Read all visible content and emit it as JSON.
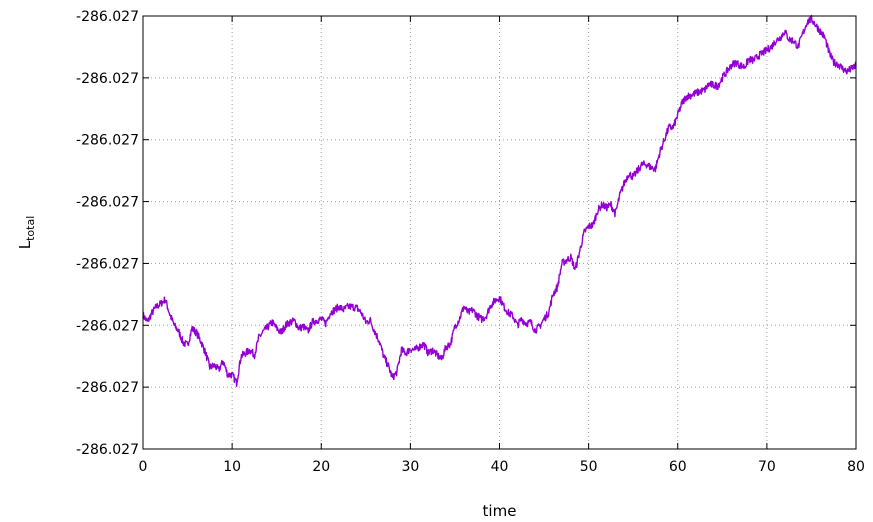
{
  "chart_data": {
    "type": "line",
    "title": "",
    "xlabel": "time",
    "ylabel": {
      "main": "L",
      "subscript": "total"
    },
    "xlim": [
      0,
      80
    ],
    "x_ticks": [
      {
        "value": 0,
        "label": "0"
      },
      {
        "value": 10,
        "label": "10"
      },
      {
        "value": 20,
        "label": "20"
      },
      {
        "value": 30,
        "label": "30"
      },
      {
        "value": 40,
        "label": "40"
      },
      {
        "value": 50,
        "label": "50"
      },
      {
        "value": 60,
        "label": "60"
      },
      {
        "value": 70,
        "label": "70"
      },
      {
        "value": 80,
        "label": "80"
      }
    ],
    "ylim": [
      0,
      7
    ],
    "y_ticks": [
      {
        "value": 0,
        "label": "-286.027"
      },
      {
        "value": 1,
        "label": "-286.027"
      },
      {
        "value": 2,
        "label": "-286.027"
      },
      {
        "value": 3,
        "label": "-286.027"
      },
      {
        "value": 4,
        "label": "-286.027"
      },
      {
        "value": 5,
        "label": "-286.027"
      },
      {
        "value": 6,
        "label": "-286.027"
      },
      {
        "value": 7,
        "label": "-286.027"
      }
    ],
    "grid": true,
    "legend": "none",
    "series": [
      {
        "color": "#9400d3",
        "x": [
          0,
          0.5,
          1,
          1.5,
          2,
          2.5,
          3,
          3.5,
          4,
          4.5,
          5,
          5.5,
          6,
          6.5,
          7,
          7.5,
          8,
          8.5,
          9,
          9.5,
          10,
          10.5,
          11,
          11.5,
          12,
          12.5,
          13,
          13.5,
          14,
          14.5,
          15,
          15.5,
          16,
          16.5,
          17,
          17.5,
          18,
          18.5,
          19,
          19.5,
          20,
          20.5,
          21,
          21.5,
          22,
          22.5,
          23,
          23.5,
          24,
          24.5,
          25,
          25.5,
          26,
          26.5,
          27,
          27.5,
          28,
          28.5,
          29,
          29.5,
          30,
          30.5,
          31,
          31.5,
          32,
          32.5,
          33,
          33.5,
          34,
          34.5,
          35,
          35.5,
          36,
          36.5,
          37,
          37.5,
          38,
          38.5,
          39,
          39.5,
          40,
          40.5,
          41,
          41.5,
          42,
          42.5,
          43,
          43.5,
          44,
          44.5,
          45,
          45.5,
          46,
          46.5,
          47,
          47.5,
          48,
          48.5,
          49,
          49.5,
          50,
          50.5,
          51,
          51.5,
          52,
          52.5,
          53,
          53.5,
          54,
          54.5,
          55,
          55.5,
          56,
          56.5,
          57,
          57.5,
          58,
          58.5,
          59,
          59.5,
          60,
          60.5,
          61,
          61.5,
          62,
          62.5,
          63,
          63.5,
          64,
          64.5,
          65,
          65.5,
          66,
          66.5,
          67,
          67.5,
          68,
          68.5,
          69,
          69.5,
          70,
          70.5,
          71,
          71.5,
          72,
          72.5,
          73,
          73.5,
          74,
          74.5,
          75,
          75.5,
          76,
          76.5,
          77,
          77.5,
          78,
          78.5,
          79,
          79.5,
          80
        ],
        "y": [
          2.17,
          2.05,
          2.2,
          2.3,
          2.35,
          2.42,
          2.18,
          2.0,
          1.9,
          1.72,
          1.68,
          1.95,
          1.88,
          1.74,
          1.56,
          1.32,
          1.35,
          1.28,
          1.42,
          1.2,
          1.2,
          1.07,
          1.5,
          1.55,
          1.6,
          1.52,
          1.8,
          1.9,
          1.97,
          2.05,
          1.95,
          1.88,
          2.0,
          2.05,
          2.07,
          1.95,
          1.98,
          1.9,
          2.05,
          2.08,
          2.1,
          2.03,
          2.2,
          2.25,
          2.3,
          2.25,
          2.3,
          2.3,
          2.28,
          2.2,
          2.05,
          2.08,
          1.9,
          1.75,
          1.5,
          1.35,
          1.15,
          1.25,
          1.6,
          1.55,
          1.62,
          1.6,
          1.65,
          1.7,
          1.55,
          1.6,
          1.52,
          1.45,
          1.65,
          1.7,
          1.98,
          2.1,
          2.3,
          2.2,
          2.25,
          2.15,
          2.1,
          2.15,
          2.32,
          2.4,
          2.45,
          2.3,
          2.2,
          2.15,
          2.0,
          2.1,
          2.03,
          2.05,
          1.92,
          1.98,
          2.1,
          2.2,
          2.5,
          2.62,
          3.0,
          3.05,
          3.1,
          2.9,
          3.2,
          3.5,
          3.6,
          3.62,
          3.85,
          3.95,
          3.9,
          3.95,
          3.8,
          4.1,
          4.3,
          4.45,
          4.4,
          4.5,
          4.6,
          4.6,
          4.55,
          4.53,
          4.8,
          5.0,
          5.2,
          5.2,
          5.4,
          5.6,
          5.7,
          5.72,
          5.75,
          5.78,
          5.8,
          5.9,
          5.88,
          5.87,
          6.0,
          6.1,
          6.2,
          6.25,
          6.2,
          6.18,
          6.3,
          6.28,
          6.35,
          6.4,
          6.45,
          6.5,
          6.6,
          6.65,
          6.75,
          6.62,
          6.6,
          6.5,
          6.7,
          6.9,
          6.95,
          6.85,
          6.75,
          6.65,
          6.4,
          6.25,
          6.22,
          6.15,
          6.1,
          6.15,
          6.2
        ]
      }
    ]
  }
}
